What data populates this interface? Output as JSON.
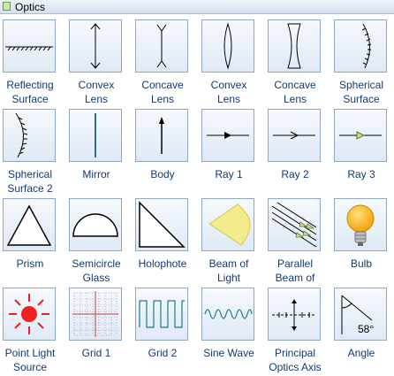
{
  "panel": {
    "title": "Optics"
  },
  "items": [
    {
      "label": "Reflecting\nSurface",
      "icon": "reflecting-surface-icon"
    },
    {
      "label": "Convex\nLens",
      "icon": "convex-lens-arrows-icon"
    },
    {
      "label": "Concave\nLens",
      "icon": "concave-lens-arrows-icon"
    },
    {
      "label": "Convex\nLens",
      "icon": "convex-lens-icon"
    },
    {
      "label": "Concave\nLens",
      "icon": "concave-lens-icon"
    },
    {
      "label": "Spherical\nSurface",
      "icon": "spherical-surface-icon"
    },
    {
      "label": "Spherical\nSurface 2",
      "icon": "spherical-surface-2-icon"
    },
    {
      "label": "Mirror",
      "icon": "mirror-icon"
    },
    {
      "label": "Body",
      "icon": "body-arrow-icon"
    },
    {
      "label": "Ray 1",
      "icon": "ray-1-icon"
    },
    {
      "label": "Ray 2",
      "icon": "ray-2-icon"
    },
    {
      "label": "Ray 3",
      "icon": "ray-3-icon"
    },
    {
      "label": "Prism",
      "icon": "prism-icon"
    },
    {
      "label": "Semicircle\nGlass",
      "icon": "semicircle-glass-icon"
    },
    {
      "label": "Holophote",
      "icon": "holophote-icon"
    },
    {
      "label": "Beam of\nLight",
      "icon": "beam-of-light-icon"
    },
    {
      "label": "Parallel\nBeam of",
      "icon": "parallel-beam-icon"
    },
    {
      "label": "Bulb",
      "icon": "bulb-icon"
    },
    {
      "label": "Point Light\nSource",
      "icon": "point-light-source-icon"
    },
    {
      "label": "Grid 1",
      "icon": "grid-1-icon"
    },
    {
      "label": "Grid 2",
      "icon": "grid-2-icon"
    },
    {
      "label": "Sine Wave",
      "icon": "sine-wave-icon"
    },
    {
      "label": "Principal\nOptics Axis",
      "icon": "principal-optics-axis-icon"
    },
    {
      "label": "Angle",
      "icon": "angle-icon",
      "value_text": "58°"
    }
  ]
}
